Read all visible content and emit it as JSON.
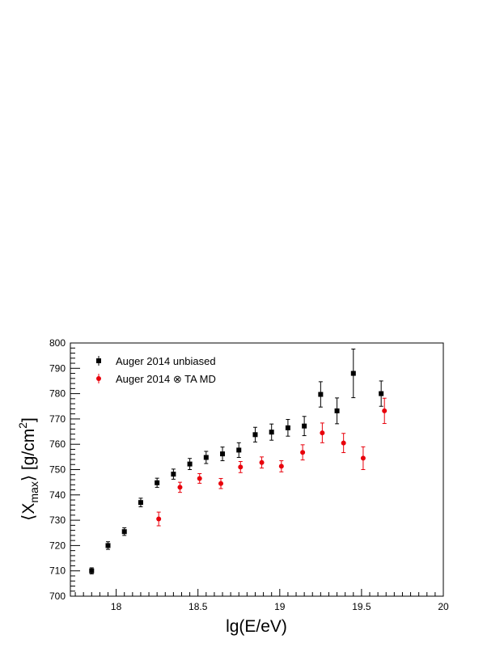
{
  "chart_data": {
    "type": "scatter",
    "title": "",
    "xlabel": "lg(E/eV)",
    "ylabel_parts": {
      "left": "⟨X",
      "sub": "max",
      "mid": "⟩ [g/cm",
      "sup": "2",
      "right": "]"
    },
    "xlim": [
      17.72,
      20.0
    ],
    "ylim": [
      700,
      800
    ],
    "xticks": [
      18,
      18.5,
      19,
      19.5,
      20
    ],
    "xtick_labels": [
      "18",
      "18.5",
      "19",
      "19.5",
      "20"
    ],
    "yticks": [
      700,
      710,
      720,
      730,
      740,
      750,
      760,
      770,
      780,
      790,
      800
    ],
    "ytick_labels": [
      "700",
      "710",
      "720",
      "730",
      "740",
      "750",
      "760",
      "770",
      "780",
      "790",
      "800"
    ],
    "grid": false,
    "legend_position": "top-left",
    "series": [
      {
        "name": "Auger 2014 unbiased",
        "color": "#000000",
        "marker": "square",
        "points": [
          {
            "x": 17.85,
            "y": 710.0,
            "err": 1.2
          },
          {
            "x": 17.95,
            "y": 720.0,
            "err": 1.5
          },
          {
            "x": 18.05,
            "y": 725.5,
            "err": 1.5
          },
          {
            "x": 18.15,
            "y": 737.0,
            "err": 1.7
          },
          {
            "x": 18.25,
            "y": 744.8,
            "err": 1.8
          },
          {
            "x": 18.35,
            "y": 748.2,
            "err": 2.0
          },
          {
            "x": 18.45,
            "y": 752.2,
            "err": 2.2
          },
          {
            "x": 18.55,
            "y": 754.8,
            "err": 2.4
          },
          {
            "x": 18.65,
            "y": 756.2,
            "err": 2.7
          },
          {
            "x": 18.75,
            "y": 757.7,
            "err": 2.9
          },
          {
            "x": 18.85,
            "y": 763.8,
            "err": 2.9
          },
          {
            "x": 18.95,
            "y": 764.8,
            "err": 3.2
          },
          {
            "x": 19.05,
            "y": 766.5,
            "err": 3.3
          },
          {
            "x": 19.15,
            "y": 767.2,
            "err": 3.8
          },
          {
            "x": 19.25,
            "y": 779.7,
            "err": 5.0
          },
          {
            "x": 19.35,
            "y": 773.2,
            "err": 5.1
          },
          {
            "x": 19.45,
            "y": 788.0,
            "err": 9.6
          },
          {
            "x": 19.62,
            "y": 780.0,
            "err": 5.0
          }
        ]
      },
      {
        "name": "Auger 2014 ⊗ TA MD",
        "color": "#e8000b",
        "marker": "circle",
        "points": [
          {
            "x": 18.26,
            "y": 730.5,
            "err": 2.7
          },
          {
            "x": 18.39,
            "y": 743.0,
            "err": 2.0
          },
          {
            "x": 18.51,
            "y": 746.5,
            "err": 1.9
          },
          {
            "x": 18.64,
            "y": 744.5,
            "err": 2.0
          },
          {
            "x": 18.76,
            "y": 751.0,
            "err": 2.2
          },
          {
            "x": 18.89,
            "y": 752.8,
            "err": 2.2
          },
          {
            "x": 19.01,
            "y": 751.3,
            "err": 2.2
          },
          {
            "x": 19.14,
            "y": 756.8,
            "err": 3.0
          },
          {
            "x": 19.26,
            "y": 764.5,
            "err": 3.9
          },
          {
            "x": 19.39,
            "y": 760.5,
            "err": 3.8
          },
          {
            "x": 19.51,
            "y": 754.5,
            "err": 4.5
          },
          {
            "x": 19.64,
            "y": 773.2,
            "err": 5.0
          }
        ]
      }
    ]
  }
}
